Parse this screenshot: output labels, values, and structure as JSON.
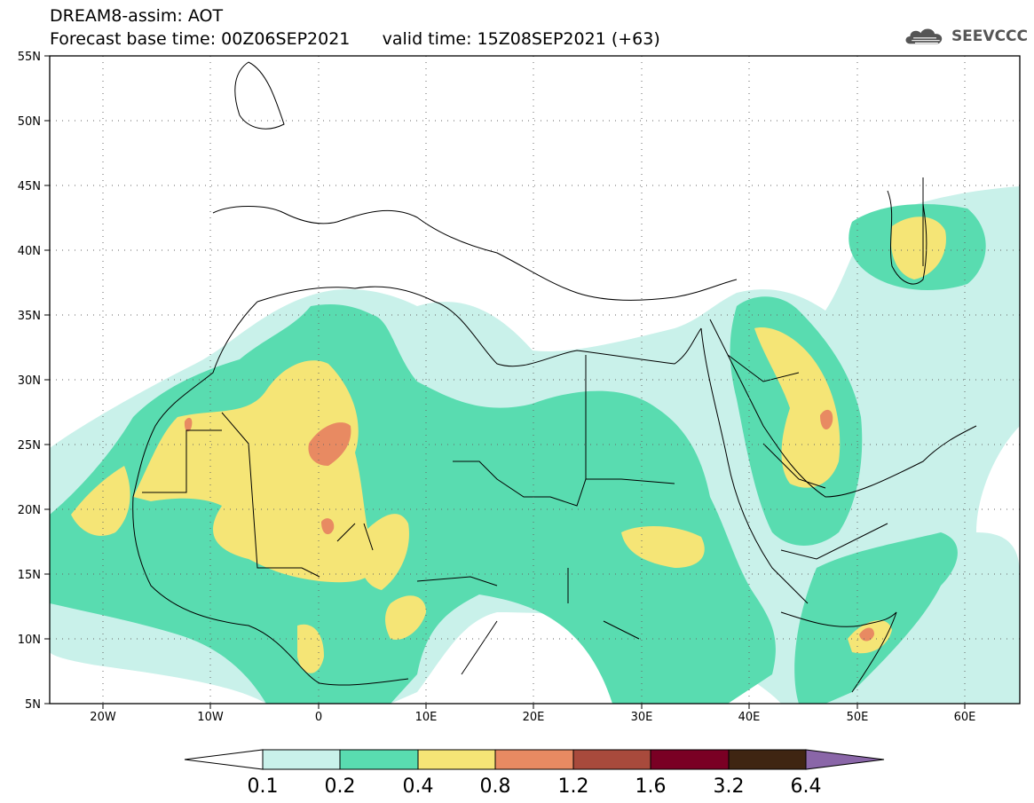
{
  "header": {
    "line1": "DREAM8-assim: AOT",
    "line2": "Forecast base time: 00Z06SEP2021      valid time: 15Z08SEP2021 (+63)"
  },
  "logo": {
    "text": "SEEVCCC",
    "icon": "cloud-icon"
  },
  "map": {
    "lon_labels": [
      "20W",
      "10W",
      "0",
      "10E",
      "20E",
      "30E",
      "40E",
      "50E",
      "60E"
    ],
    "lat_labels": [
      "55N",
      "50N",
      "45N",
      "40N",
      "35N",
      "30N",
      "25N",
      "20N",
      "15N",
      "10N",
      "5N"
    ],
    "lon_range": [
      -25,
      65
    ],
    "lat_range": [
      5,
      55
    ],
    "grid": "dotted"
  },
  "colorbar": {
    "levels": [
      "0.1",
      "0.2",
      "0.4",
      "0.8",
      "1.2",
      "1.6",
      "3.2",
      "6.4"
    ],
    "colors": [
      "#ffffff",
      "#c9f1ea",
      "#59dcb0",
      "#f5e576",
      "#e88a62",
      "#a84a3c",
      "#7a0024",
      "#3f2512",
      "#8a66a8"
    ]
  },
  "palette": {
    "c1": "#c9f1ea",
    "c2": "#59dcb0",
    "c3": "#f5e576",
    "c4": "#e88a62"
  }
}
